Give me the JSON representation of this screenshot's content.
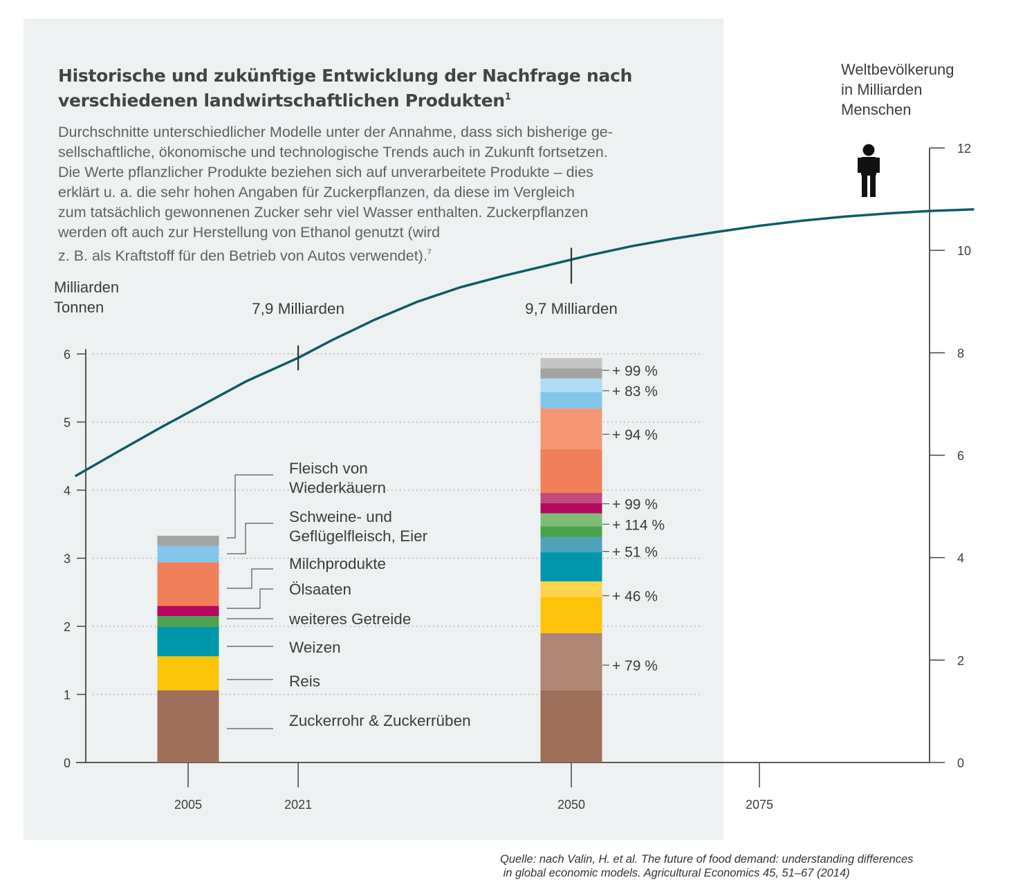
{
  "title_line1": "Historische und zukünftige Entwicklung der Nachfrage nach",
  "title_line2": "verschiedenen landwirtschaftlichen Produkten",
  "title_note": "1",
  "subtitle_lines": [
    "Durchschnitte unterschiedlicher Modelle unter der Annahme, dass sich bisherige ge-",
    "sellschaftliche, ökonomische und technologische Trends auch in Zukunft fortsetzen.",
    "Die Werte pflanzlicher Produkte beziehen sich auf unverarbeitete Produkte – dies",
    "erklärt u. a. die sehr hohen Angaben für Zuckerpflanzen, da diese im Vergleich",
    "zum tatsächlich gewonnenen Zucker sehr viel Wasser enthalten. Zuckerpflanzen",
    "werden oft auch zur Herstellung von Ethanol genutzt (wird",
    "z. B. als Kraftstoff für den Betrieb von Autos verwendet)."
  ],
  "subtitle_note": "7",
  "source_line1": "Quelle: nach Valin, H. et al. The future of food demand: understanding differences",
  "source_line2": " in global economic models. Agricultural Economics 45, 51–67 (2014)",
  "colors": {
    "panel": "#edf1f2",
    "population_line": "#0e5c66",
    "axis": "#444444",
    "grid": "#aaaaaa"
  },
  "chart_data": {
    "type": "bar",
    "left_axis": {
      "label_lines": [
        "Milliarden",
        "Tonnen"
      ],
      "ylim": [
        0,
        6
      ],
      "ticks": [
        0,
        1,
        2,
        3,
        4,
        5,
        6
      ],
      "grid": true
    },
    "right_axis": {
      "label_lines": [
        "Weltbevölkerung",
        "in Milliarden",
        "Menschen"
      ],
      "ylim": [
        0,
        12
      ],
      "ticks": [
        0,
        2,
        4,
        6,
        8,
        10,
        12
      ]
    },
    "x_axis": {
      "range": [
        1995,
        2100
      ],
      "ticks": [
        "2005",
        "2021",
        "2050",
        "2075"
      ]
    },
    "bars": [
      {
        "year": "2005",
        "segments": [
          {
            "name": "Zuckerrohr & Zuckerrüben",
            "value": 1.06,
            "color": "#9e6f5a"
          },
          {
            "name": "Reis",
            "value": 0.5,
            "color": "#fcc30b"
          },
          {
            "name": "Weizen",
            "value": 0.43,
            "color": "#0097ac"
          },
          {
            "name": "weiteres Getreide",
            "value": 0.16,
            "color": "#4aa44e"
          },
          {
            "name": "Ölsaaten",
            "value": 0.15,
            "color": "#b5085f"
          },
          {
            "name": "Milchprodukte",
            "value": 0.64,
            "color": "#f1805a"
          },
          {
            "name": "Schweine- und Geflügelfleisch, Eier",
            "value": 0.24,
            "color": "#82c6ec"
          },
          {
            "name": "Fleisch von Wiederkäuern",
            "value": 0.15,
            "color": "#a4a4a4"
          }
        ]
      },
      {
        "year": "2050",
        "segments": [
          {
            "name": "Zuckerrohr & Zuckerrüben",
            "value": 1.06,
            "color": "#9e6f5a"
          },
          {
            "name": "Zuckerrohr & Zuckerrüben",
            "value": 0.84,
            "color": "#ad8675"
          },
          {
            "name": "Reis",
            "value": 0.53,
            "color": "#fcc30b"
          },
          {
            "name": "Reis",
            "value": 0.23,
            "color": "#fdd34a"
          },
          {
            "name": "Weizen",
            "value": 0.43,
            "color": "#0097ac"
          },
          {
            "name": "Weizen",
            "value": 0.22,
            "color": "#4da4b9"
          },
          {
            "name": "weiteres Getreide",
            "value": 0.16,
            "color": "#4aa44e"
          },
          {
            "name": "weiteres Getreide",
            "value": 0.19,
            "color": "#7fbb75"
          },
          {
            "name": "Ölsaaten",
            "value": 0.15,
            "color": "#b5085f"
          },
          {
            "name": "Ölsaaten",
            "value": 0.15,
            "color": "#c34a7c"
          },
          {
            "name": "Milchprodukte",
            "value": 0.64,
            "color": "#f1805a"
          },
          {
            "name": "Milchprodukte",
            "value": 0.6,
            "color": "#f49672"
          },
          {
            "name": "Schweine- und Geflügelfleisch, Eier",
            "value": 0.24,
            "color": "#82c6ec"
          },
          {
            "name": "Schweine- und Geflügelfleisch, Eier",
            "value": 0.2,
            "color": "#b2dbf5"
          },
          {
            "name": "Fleisch von Wiederkäuern",
            "value": 0.15,
            "color": "#a4a4a4"
          },
          {
            "name": "Fleisch von Wiederkäuern",
            "value": 0.15,
            "color": "#c6c6c6"
          }
        ]
      }
    ],
    "growth_labels": [
      {
        "text": "+ 99 %",
        "y": 5.76
      },
      {
        "text": "+ 83 %",
        "y": 5.46
      },
      {
        "text": "+ 94 %",
        "y": 4.82
      },
      {
        "text": "+ 99 %",
        "y": 3.8
      },
      {
        "text": "+ 114 %",
        "y": 3.5
      },
      {
        "text": "+ 51 %",
        "y": 3.1
      },
      {
        "text": "+ 46 %",
        "y": 2.45
      },
      {
        "text": "+ 79 %",
        "y": 1.43
      }
    ],
    "legend": [
      {
        "lines": [
          "Fleisch von",
          "Wiederkäuern"
        ],
        "y": 3.3
      },
      {
        "lines": [
          "Schweine- und",
          "Geflügelfleisch, Eier"
        ],
        "y": 3.05
      },
      {
        "lines": [
          "Milchprodukte"
        ],
        "y": 2.55
      },
      {
        "lines": [
          "Ölsaaten"
        ],
        "y": 2.25
      },
      {
        "lines": [
          "weiteres Getreide"
        ],
        "y": 2.1
      },
      {
        "lines": [
          "Weizen"
        ],
        "y": 1.7
      },
      {
        "lines": [
          "Reis"
        ],
        "y": 1.22
      },
      {
        "lines": [
          "Zuckerrohr & Zuckerrüben"
        ],
        "y": 0.5
      }
    ],
    "population": {
      "x": [
        1995,
        2000,
        2005,
        2010,
        2015,
        2021,
        2025,
        2030,
        2035,
        2040,
        2045,
        2050,
        2055,
        2060,
        2065,
        2070,
        2075,
        2080,
        2085,
        2090,
        2095,
        2100
      ],
      "y": [
        5.6,
        6.08,
        6.55,
        7.0,
        7.45,
        7.9,
        8.25,
        8.65,
        9.0,
        9.28,
        9.5,
        9.7,
        9.9,
        10.08,
        10.23,
        10.36,
        10.48,
        10.58,
        10.66,
        10.72,
        10.77,
        10.8
      ],
      "annotations": [
        {
          "year": 2021,
          "value": 7.9,
          "text": "7,9 Milliarden"
        },
        {
          "year": 2050,
          "value": 9.7,
          "text": "9,7 Milliarden"
        }
      ]
    }
  }
}
